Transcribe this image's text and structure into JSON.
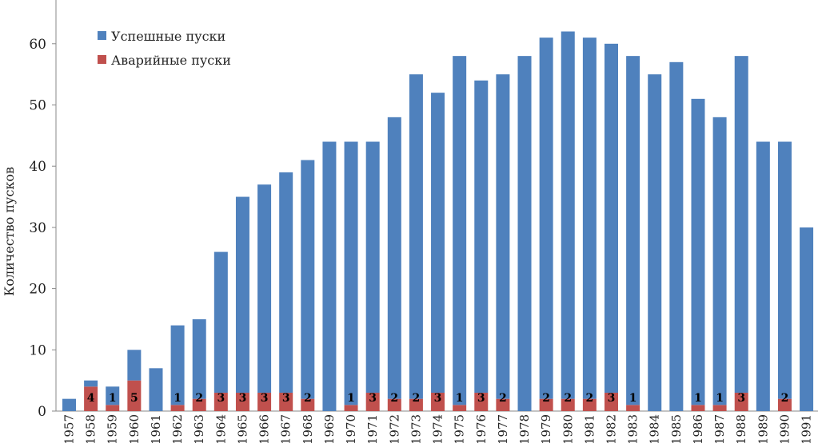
{
  "chart_data": {
    "type": "bar",
    "stacked": true,
    "title": "",
    "xlabel": "",
    "ylabel": "Количество пусков",
    "ylim": [
      0,
      65
    ],
    "yticks": [
      0,
      10,
      20,
      30,
      40,
      50,
      60
    ],
    "grid": false,
    "legend_position": "top-left",
    "categories": [
      "1957",
      "1958",
      "1959",
      "1960",
      "1961",
      "1962",
      "1963",
      "1964",
      "1965",
      "1966",
      "1967",
      "1968",
      "1969",
      "1970",
      "1971",
      "1972",
      "1973",
      "1974",
      "1975",
      "1976",
      "1977",
      "1978",
      "1979",
      "1980",
      "1981",
      "1982",
      "1983",
      "1984",
      "1985",
      "1986",
      "1987",
      "1988",
      "1989",
      "1990",
      "1991"
    ],
    "series": [
      {
        "name": "Успешные пуски",
        "color": "#4f81bd",
        "values": [
          2,
          1,
          3,
          5,
          7,
          13,
          13,
          23,
          32,
          34,
          36,
          39,
          44,
          43,
          41,
          46,
          53,
          49,
          57,
          51,
          53,
          58,
          59,
          60,
          59,
          57,
          57,
          55,
          57,
          50,
          47,
          55,
          44,
          42,
          30
        ]
      },
      {
        "name": "Аварийные пуски",
        "color": "#c0504d",
        "values": [
          0,
          4,
          1,
          5,
          0,
          1,
          2,
          3,
          3,
          3,
          3,
          2,
          0,
          1,
          3,
          2,
          2,
          3,
          1,
          3,
          2,
          0,
          2,
          2,
          2,
          3,
          1,
          0,
          0,
          1,
          1,
          3,
          0,
          2,
          0
        ]
      }
    ],
    "data_labels": [
      "",
      "4",
      "1",
      "5",
      "",
      "1",
      "2",
      "3",
      "3",
      "3",
      "3",
      "2",
      "",
      "1",
      "3",
      "2",
      "2",
      "3",
      "1",
      "3",
      "2",
      "",
      "2",
      "2",
      "2",
      "3",
      "1",
      "",
      "",
      "1",
      "1",
      "3",
      "",
      "2",
      ""
    ]
  }
}
